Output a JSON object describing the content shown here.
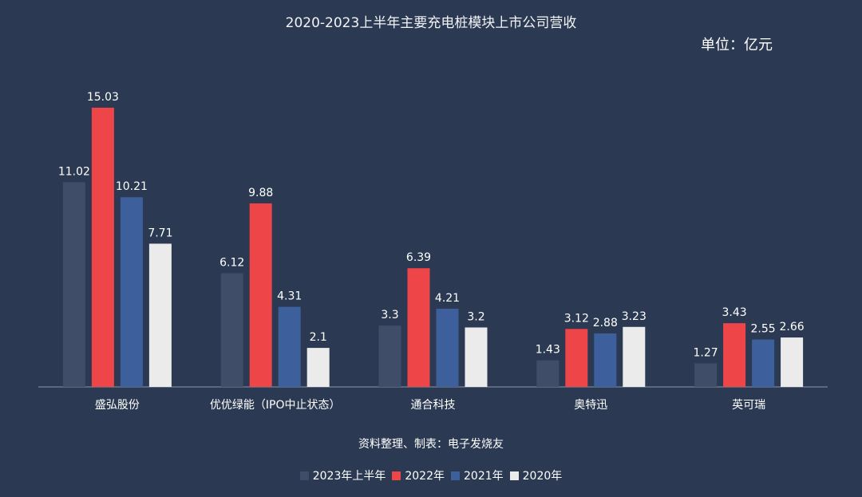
{
  "chart_data": {
    "type": "bar",
    "title": "2020-2023上半年主要充电桩模块上市公司营收",
    "unit": "单位：亿元",
    "source": "资料整理、制表：电子发烧友",
    "categories": [
      "盛弘股份",
      "优优绿能（IPO中止状态）",
      "通合科技",
      "奥特迅",
      "英可瑞"
    ],
    "series": [
      {
        "name": "2023年上半年",
        "color": "#3f4d68",
        "values": [
          11.02,
          6.12,
          3.3,
          1.43,
          1.27
        ]
      },
      {
        "name": "2022年",
        "color": "#ee4549",
        "values": [
          15.03,
          9.88,
          6.39,
          3.12,
          3.43
        ]
      },
      {
        "name": "2021年",
        "color": "#3d5f9b",
        "values": [
          10.21,
          4.31,
          4.21,
          2.88,
          2.55
        ]
      },
      {
        "name": "2020年",
        "color": "#ebebeb",
        "values": [
          7.71,
          2.1,
          3.2,
          3.23,
          2.66
        ]
      }
    ],
    "ylim": [
      0,
      17.5
    ],
    "grid": false,
    "legend_position": "bottom"
  }
}
